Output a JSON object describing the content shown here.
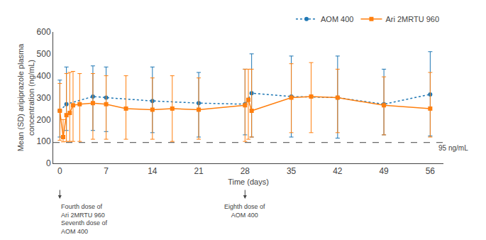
{
  "chart_data": {
    "type": "line",
    "xlabel": "Time (days)",
    "ylabel": "Mean (SD) aripiprazole plasma\nconcentration (ng/mL)",
    "xlim": [
      -1,
      58
    ],
    "xticks": [
      0,
      7,
      14,
      21,
      28,
      35,
      42,
      49,
      56
    ],
    "ylim": [
      0,
      600
    ],
    "yticks": [
      0,
      100,
      200,
      300,
      400,
      500,
      600
    ],
    "grid": false,
    "legend": "upper right",
    "series": [
      {
        "name": "AOM 400",
        "marker": "circle",
        "line_style": "dotted",
        "x": [
          0,
          1,
          5,
          7,
          14,
          21,
          28,
          29,
          35,
          42,
          49,
          56
        ],
        "values": [
          240,
          270,
          305,
          300,
          285,
          275,
          270,
          320,
          305,
          300,
          270,
          315
        ],
        "sd_upper": [
          380,
          440,
          445,
          440,
          440,
          415,
          430,
          500,
          490,
          490,
          430,
          510
        ],
        "sd_lower": [
          120,
          150,
          150,
          145,
          140,
          120,
          130,
          120,
          120,
          115,
          130,
          125
        ]
      },
      {
        "name": "Ari 2MRTU 960",
        "marker": "square",
        "line_style": "solid",
        "x": [
          0,
          0.5,
          1,
          1.5,
          2,
          3,
          5,
          7,
          10,
          14,
          17,
          21,
          28,
          28.5,
          29,
          35,
          38,
          42,
          49,
          56
        ],
        "values": [
          240,
          120,
          220,
          230,
          265,
          270,
          275,
          270,
          250,
          245,
          250,
          245,
          265,
          290,
          240,
          300,
          305,
          300,
          265,
          250
        ],
        "sd_upper": [
          365,
          200,
          410,
          415,
          420,
          410,
          410,
          400,
          400,
          390,
          400,
          390,
          430,
          430,
          430,
          455,
          460,
          430,
          395,
          415
        ],
        "sd_lower": [
          105,
          98,
          100,
          100,
          100,
          100,
          110,
          110,
          110,
          110,
          100,
          110,
          100,
          110,
          120,
          140,
          140,
          140,
          130,
          120
        ]
      }
    ],
    "reference_line": {
      "value": 95,
      "label": "95 ng/mL"
    },
    "annotations": [
      {
        "x": 0,
        "text": "Fourth dose of\nAri 2MRTU 960\nSeventh dose of\nAOM 400",
        "align": "left"
      },
      {
        "x": 28,
        "text": "Eighth dose of\nAOM 400",
        "align": "center"
      }
    ]
  }
}
